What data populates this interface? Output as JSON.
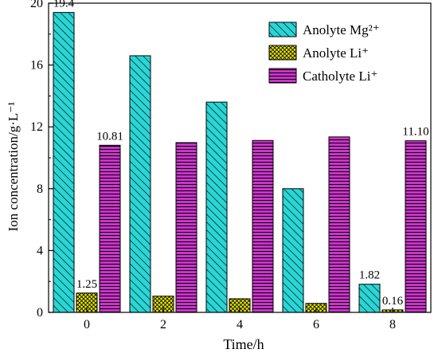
{
  "chart_data": {
    "type": "bar",
    "categories": [
      "0",
      "2",
      "4",
      "6",
      "8"
    ],
    "series": [
      {
        "name": "Anolyte Mg²⁺",
        "values": [
          19.4,
          16.6,
          13.6,
          8.0,
          1.82
        ],
        "color": "#29d6d6",
        "pattern": "diagonal-hatch"
      },
      {
        "name": "Anolyte Li⁺",
        "values": [
          1.25,
          1.05,
          0.88,
          0.58,
          0.16
        ],
        "color": "#e6e600",
        "pattern": "cross-hatch"
      },
      {
        "name": "Catholyte Li⁺",
        "values": [
          10.81,
          10.98,
          11.12,
          11.35,
          11.1
        ],
        "color": "#cc33cc",
        "pattern": "horizontal-lines"
      }
    ],
    "data_labels": [
      {
        "series": 0,
        "index": 0,
        "text": "19.4"
      },
      {
        "series": 2,
        "index": 0,
        "text": "10.81"
      },
      {
        "series": 1,
        "index": 0,
        "text": "1.25"
      },
      {
        "series": 0,
        "index": 4,
        "text": "1.82"
      },
      {
        "series": 1,
        "index": 4,
        "text": "0.16"
      },
      {
        "series": 2,
        "index": 4,
        "text": "11.10"
      }
    ],
    "xlabel": "Time/h",
    "ylabel": "Ion concentration/g·L⁻¹",
    "ylim": [
      0,
      20
    ],
    "yticks": [
      "0",
      "4",
      "8",
      "12",
      "16",
      "20"
    ],
    "grid": false,
    "legend_position": "top-right"
  }
}
